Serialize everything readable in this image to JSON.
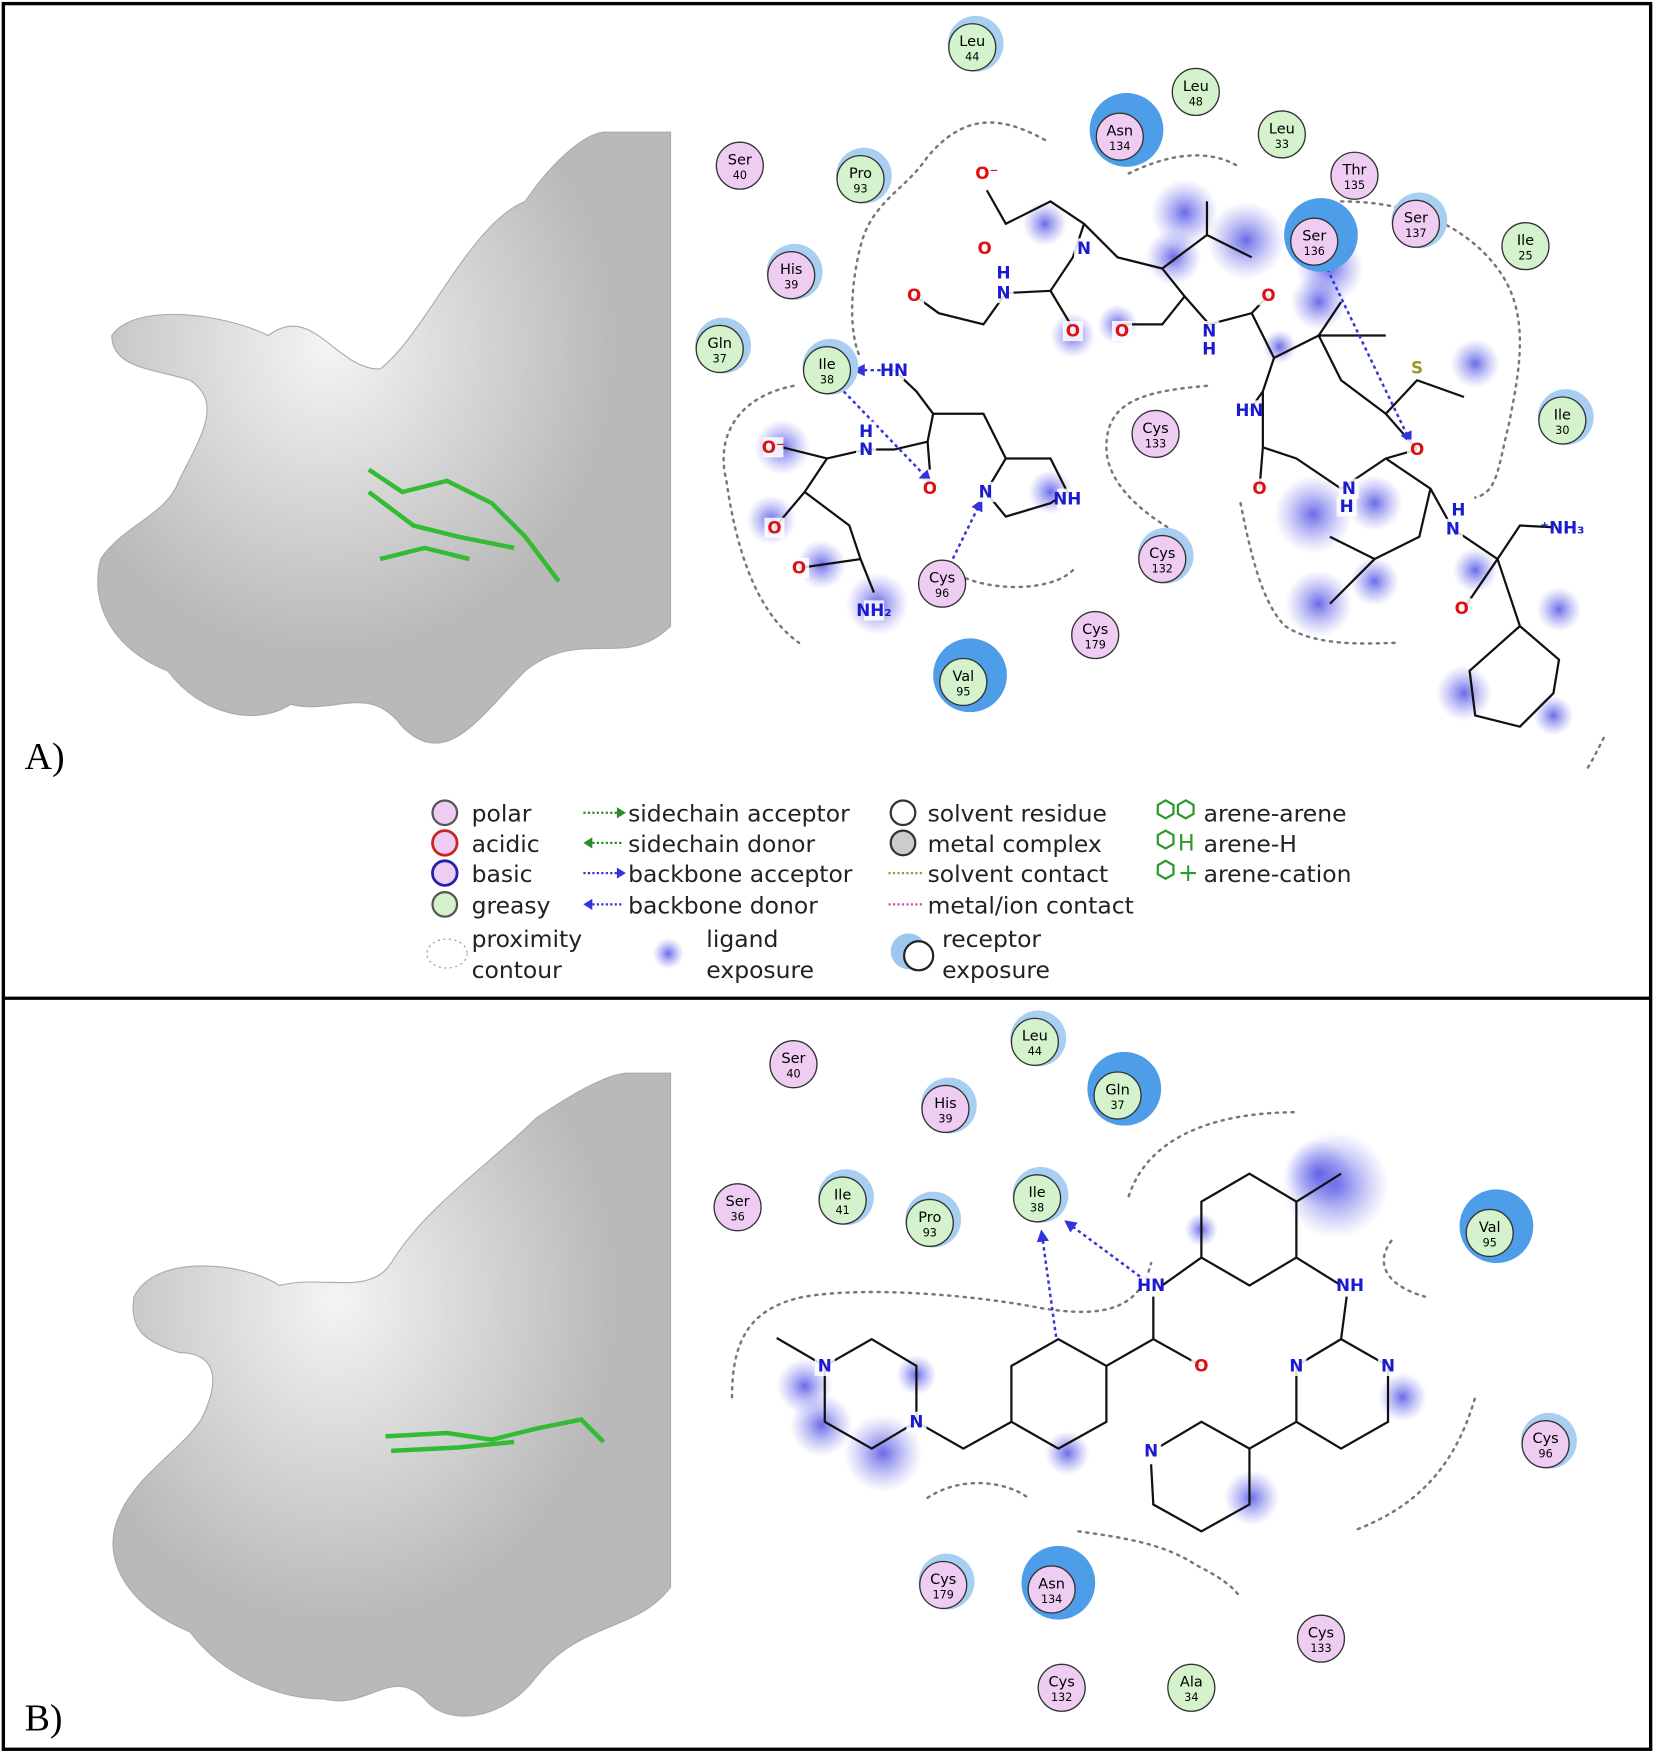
{
  "panels": [
    {
      "label": "A)",
      "residues": [
        {
          "name": "Leu",
          "number": "44",
          "type": "greasy"
        },
        {
          "name": "Leu",
          "number": "48",
          "type": "greasy"
        },
        {
          "name": "Asn",
          "number": "134",
          "type": "polar"
        },
        {
          "name": "Leu",
          "number": "33",
          "type": "greasy"
        },
        {
          "name": "Ser",
          "number": "40",
          "type": "polar"
        },
        {
          "name": "Pro",
          "number": "93",
          "type": "greasy"
        },
        {
          "name": "Thr",
          "number": "135",
          "type": "polar"
        },
        {
          "name": "Ser",
          "number": "137",
          "type": "polar"
        },
        {
          "name": "Ser",
          "number": "136",
          "type": "polar"
        },
        {
          "name": "Ile",
          "number": "25",
          "type": "greasy"
        },
        {
          "name": "His",
          "number": "39",
          "type": "polar"
        },
        {
          "name": "Gln",
          "number": "37",
          "type": "greasy"
        },
        {
          "name": "Ile",
          "number": "38",
          "type": "greasy"
        },
        {
          "name": "Cys",
          "number": "133",
          "type": "polar"
        },
        {
          "name": "Ile",
          "number": "30",
          "type": "greasy"
        },
        {
          "name": "Cys",
          "number": "132",
          "type": "polar"
        },
        {
          "name": "Cys",
          "number": "96",
          "type": "polar"
        },
        {
          "name": "Cys",
          "number": "179",
          "type": "polar"
        },
        {
          "name": "Val",
          "number": "95",
          "type": "greasy"
        }
      ],
      "atoms": [
        "O⁻",
        "O",
        "N",
        "H",
        "N",
        "O",
        "O",
        "O",
        "N",
        "H",
        "O",
        "HN",
        "H",
        "N",
        "O⁻",
        "O",
        "N",
        "NH",
        "O",
        "O",
        "NH₂",
        "S",
        "HN",
        "O",
        "O",
        "N",
        "H",
        "H",
        "N",
        "⁺NH₃",
        "O"
      ]
    },
    {
      "label": "B)",
      "residues": [
        {
          "name": "Ser",
          "number": "40",
          "type": "polar"
        },
        {
          "name": "Leu",
          "number": "44",
          "type": "greasy"
        },
        {
          "name": "Gln",
          "number": "37",
          "type": "greasy"
        },
        {
          "name": "His",
          "number": "39",
          "type": "polar"
        },
        {
          "name": "Ser",
          "number": "36",
          "type": "polar"
        },
        {
          "name": "Ile",
          "number": "41",
          "type": "greasy"
        },
        {
          "name": "Pro",
          "number": "93",
          "type": "greasy"
        },
        {
          "name": "Ile",
          "number": "38",
          "type": "greasy"
        },
        {
          "name": "Val",
          "number": "95",
          "type": "greasy"
        },
        {
          "name": "Cys",
          "number": "96",
          "type": "polar"
        },
        {
          "name": "Cys",
          "number": "179",
          "type": "polar"
        },
        {
          "name": "Asn",
          "number": "134",
          "type": "polar"
        },
        {
          "name": "Cys",
          "number": "133",
          "type": "polar"
        },
        {
          "name": "Cys",
          "number": "132",
          "type": "polar"
        },
        {
          "name": "Ala",
          "number": "34",
          "type": "greasy"
        }
      ],
      "atoms": [
        "HN",
        "NH",
        "O",
        "N",
        "N",
        "N",
        "N",
        "N"
      ]
    }
  ],
  "legend": [
    {
      "lines": [
        "polar"
      ]
    },
    {
      "lines": [
        "acidic"
      ]
    },
    {
      "lines": [
        "basic"
      ]
    },
    {
      "lines": [
        "greasy"
      ]
    },
    {
      "lines": [
        "proximity",
        "contour"
      ]
    },
    {
      "lines": [
        "sidechain acceptor"
      ]
    },
    {
      "lines": [
        "sidechain donor"
      ]
    },
    {
      "lines": [
        "backbone acceptor"
      ]
    },
    {
      "lines": [
        "backbone donor"
      ]
    },
    {
      "lines": [
        "ligand",
        "exposure"
      ]
    },
    {
      "lines": [
        "solvent residue"
      ]
    },
    {
      "lines": [
        "metal complex"
      ]
    },
    {
      "lines": [
        "solvent contact"
      ]
    },
    {
      "lines": [
        "metal/ion contact"
      ]
    },
    {
      "lines": [
        "receptor",
        "exposure"
      ]
    },
    {
      "lines": [
        "arene-arene"
      ]
    },
    {
      "lines": [
        "arene-H"
      ]
    },
    {
      "lines": [
        "arene-cation"
      ]
    }
  ]
}
